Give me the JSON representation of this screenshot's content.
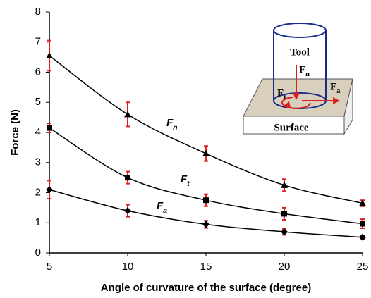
{
  "chart_data": {
    "type": "line",
    "x_label": "Angle of curvature of the surface (degree)",
    "y_label": "Force (N)",
    "x": [
      5,
      10,
      15,
      20,
      25
    ],
    "xlim": [
      5,
      25
    ],
    "xticks": [
      5,
      10,
      15,
      20,
      25
    ],
    "ylim": [
      0,
      8
    ],
    "yticks": [
      0,
      1,
      2,
      3,
      4,
      5,
      6,
      7,
      8
    ],
    "error_color": "#e02020",
    "series": [
      {
        "name": "Fn",
        "color": "#000000",
        "marker": "triangle",
        "values": [
          6.55,
          4.6,
          3.3,
          2.25,
          1.65
        ],
        "errors": [
          0.5,
          0.4,
          0.25,
          0.2,
          0.1
        ]
      },
      {
        "name": "Ft",
        "color": "#000000",
        "marker": "square",
        "values": [
          4.15,
          2.5,
          1.75,
          1.3,
          0.97
        ],
        "errors": [
          0.15,
          0.2,
          0.2,
          0.2,
          0.15
        ]
      },
      {
        "name": "Fa",
        "color": "#000000",
        "marker": "diamond",
        "values": [
          2.1,
          1.4,
          0.95,
          0.7,
          0.52
        ],
        "errors": [
          0.3,
          0.2,
          0.12,
          0.1,
          0.05
        ]
      }
    ],
    "inset": {
      "tool": "Tool",
      "normal": "Fn",
      "tangential": "Ft",
      "axial": "Fa",
      "surface": "Surface"
    }
  }
}
